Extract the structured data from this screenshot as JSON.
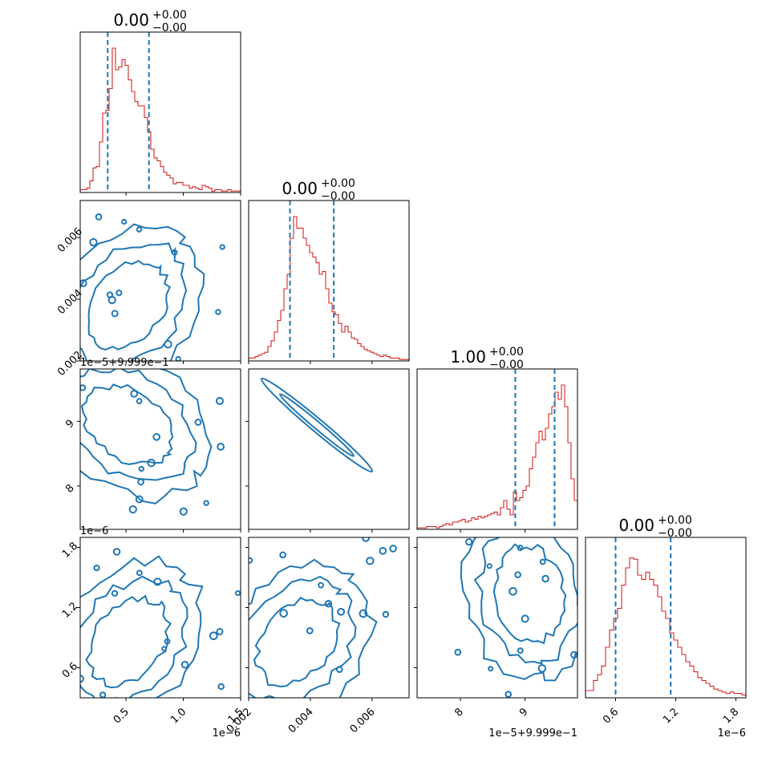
{
  "chart_data": {
    "type": "corner",
    "colors": {
      "hist": "#d62728",
      "contour": "#1f77b4",
      "quantile": "#1f77b4",
      "axes": "#000000"
    },
    "params": [
      {
        "title": "0.00",
        "plus": "+0.00",
        "minus": "−0.00",
        "range": [
          0.1,
          1.5
        ],
        "ticks": [
          0.5,
          1.0,
          1.5
        ],
        "ticklabels": [
          "0.5",
          "1.0",
          "1.5"
        ],
        "offset": "1e−6",
        "quantiles": [
          0.34,
          0.7
        ],
        "hist": [
          0.02,
          0.02,
          0.03,
          0.08,
          0.17,
          0.18,
          0.35,
          0.55,
          0.57,
          0.72,
          1.0,
          0.85,
          0.87,
          0.92,
          0.88,
          0.78,
          0.7,
          0.63,
          0.6,
          0.6,
          0.52,
          0.42,
          0.3,
          0.24,
          0.22,
          0.18,
          0.14,
          0.12,
          0.1,
          0.06,
          0.07,
          0.07,
          0.05,
          0.05,
          0.03,
          0.04,
          0.03,
          0.02,
          0.05,
          0.04,
          0.03,
          0.01,
          0.02,
          0.02,
          0.01,
          0.01,
          0.02,
          0.01,
          0.01,
          0.01
        ]
      },
      {
        "title": "0.00",
        "plus": "+0.00",
        "minus": "−0.00",
        "range": [
          0.002,
          0.0072
        ],
        "ticks": [
          0.002,
          0.004,
          0.006
        ],
        "ticklabels": [
          "0.002",
          "0.004",
          "0.006"
        ],
        "offset": "",
        "quantiles": [
          0.00334,
          0.00476
        ],
        "hist": [
          0.02,
          0.02,
          0.03,
          0.04,
          0.05,
          0.06,
          0.1,
          0.14,
          0.2,
          0.28,
          0.35,
          0.5,
          0.6,
          0.85,
          1.0,
          0.92,
          0.92,
          0.85,
          0.8,
          0.75,
          0.72,
          0.68,
          0.6,
          0.62,
          0.5,
          0.4,
          0.34,
          0.32,
          0.26,
          0.2,
          0.24,
          0.2,
          0.16,
          0.15,
          0.12,
          0.1,
          0.08,
          0.07,
          0.06,
          0.05,
          0.04,
          0.03,
          0.04,
          0.03,
          0.02,
          0.02,
          0.02,
          0.01,
          0.01,
          0.01
        ]
      },
      {
        "title": "1.00",
        "plus": "+0.00",
        "minus": "−0.00",
        "range": [
          0.9999733,
          0.9999981
        ],
        "ticks": [
          0.99998,
          0.99999
        ],
        "ticklabels": [
          "8",
          "9"
        ],
        "offset": "1e−5+9.999e−1",
        "quantiles": [
          0.99998848,
          0.99999456
        ],
        "hist": [
          0.01,
          0.01,
          0.01,
          0.02,
          0.02,
          0.02,
          0.01,
          0.02,
          0.03,
          0.04,
          0.03,
          0.05,
          0.05,
          0.06,
          0.07,
          0.05,
          0.06,
          0.08,
          0.07,
          0.09,
          0.08,
          0.09,
          0.1,
          0.11,
          0.12,
          0.1,
          0.15,
          0.2,
          0.14,
          0.1,
          0.26,
          0.2,
          0.22,
          0.27,
          0.3,
          0.42,
          0.5,
          0.6,
          0.68,
          0.62,
          0.7,
          0.8,
          0.85,
          0.95,
          0.9,
          1.0,
          0.85,
          0.6,
          0.35,
          0.2
        ]
      },
      {
        "title": "0.00",
        "plus": "+0.00",
        "minus": "−0.00",
        "range": [
          0.3,
          1.9
        ],
        "ticks": [
          0.6,
          1.2,
          1.8
        ],
        "ticklabels": [
          "0.6",
          "1.2",
          "1.8"
        ],
        "offset": "1e−6",
        "quantiles": [
          0.6,
          1.15
        ],
        "hist": [
          0.05,
          0.05,
          0.12,
          0.16,
          0.22,
          0.35,
          0.47,
          0.55,
          0.62,
          0.78,
          0.9,
          0.97,
          0.96,
          0.85,
          0.82,
          0.87,
          0.82,
          0.78,
          0.7,
          0.6,
          0.55,
          0.45,
          0.4,
          0.35,
          0.3,
          0.25,
          0.22,
          0.18,
          0.14,
          0.12,
          0.1,
          0.08,
          0.06,
          0.05,
          0.04,
          0.03,
          0.04,
          0.03,
          0.03,
          0.02
        ]
      }
    ],
    "left_offsets": [
      "",
      "",
      "1e−5+9.999e−1",
      "1e−6"
    ]
  }
}
